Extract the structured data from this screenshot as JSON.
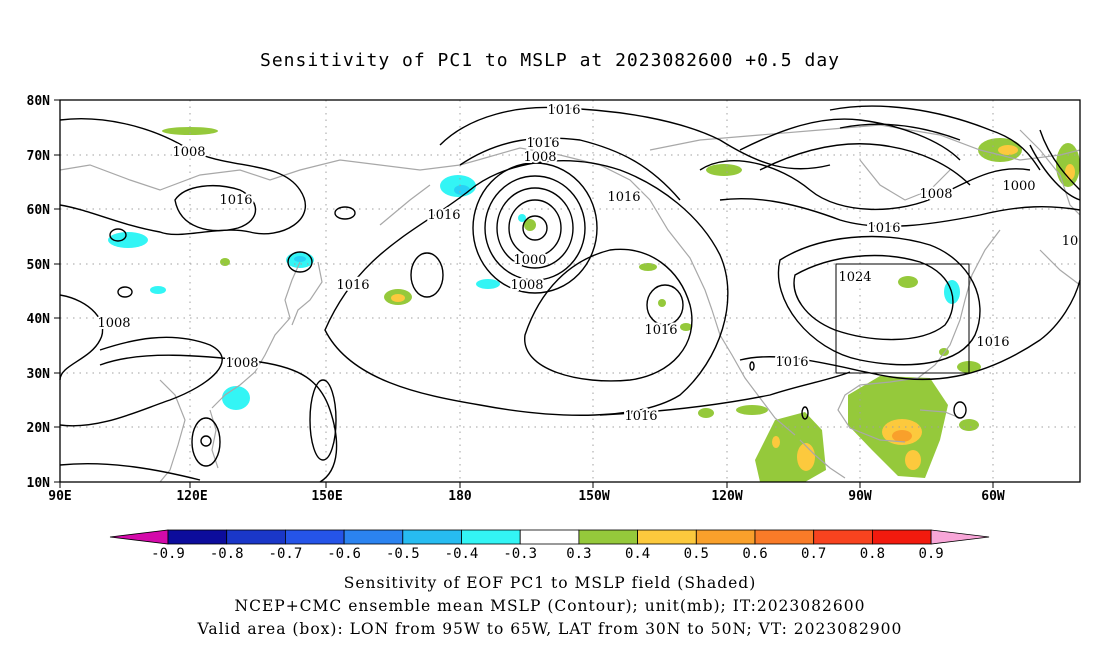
{
  "title": "Sensitivity of PC1 to MSLP at 2023082600 +0.5 day",
  "map": {
    "lat_labels": [
      "80N",
      "70N",
      "60N",
      "50N",
      "40N",
      "30N",
      "20N",
      "10N"
    ],
    "lon_labels": [
      "90E",
      "120E",
      "150E",
      "180",
      "150W",
      "120W",
      "90W",
      "60W"
    ],
    "valid_box": {
      "lon_west": "95W",
      "lon_east": "65W",
      "lat_south": "30N",
      "lat_north": "50N"
    },
    "contour_labels": [
      "1016",
      "1016",
      "1008",
      "1008",
      "1016",
      "1016",
      "1000",
      "1008",
      "1016",
      "1016",
      "1008",
      "1016",
      "1008",
      "1016",
      "1016",
      "1016",
      "1024",
      "1016",
      "1008",
      "1000",
      "1016",
      "1008",
      "1016",
      "1016",
      "10"
    ],
    "colors": {
      "pos_0_3": "#95c93b",
      "pos_0_4": "#fcc93d",
      "pos_0_5": "#f9a02b",
      "neg_0_3": "#33f5f5",
      "neg_0_4": "#27d1f5",
      "coast": "#a8a8a8",
      "contour": "#000000"
    }
  },
  "colorbar": {
    "labels": [
      "-0.9",
      "-0.8",
      "-0.7",
      "-0.6",
      "-0.5",
      "-0.4",
      "-0.3",
      "0.3",
      "0.4",
      "0.5",
      "0.6",
      "0.7",
      "0.8",
      "0.9"
    ],
    "colors": [
      "#d40aaa",
      "#0c0c9c",
      "#1a37c8",
      "#2554e8",
      "#2b83f0",
      "#27bcf1",
      "#33f5f5",
      "#ffffff",
      "#95c93b",
      "#fcc93d",
      "#f9a02b",
      "#f97b28",
      "#f8431f",
      "#f21a0e",
      "#f8a6d8"
    ]
  },
  "caption": {
    "line1": "Sensitivity of EOF PC1 to MSLP field (Shaded)",
    "line2": "NCEP+CMC ensemble mean MSLP (Contour); unit(mb); IT:2023082600",
    "line3": "Valid area (box): LON from 95W to 65W, LAT from 30N to 50N; VT: 2023082900"
  }
}
